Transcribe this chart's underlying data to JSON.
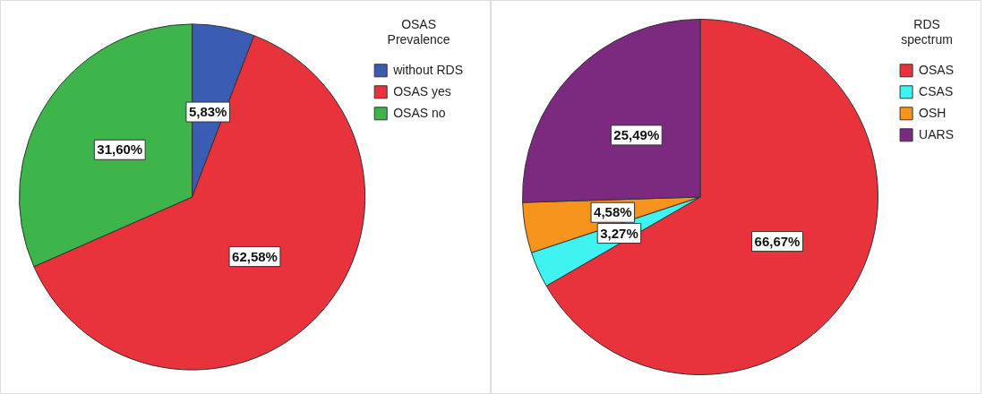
{
  "chart_data": [
    {
      "type": "pie",
      "legend_title": "OSAS Prevalence",
      "legend": "top right",
      "categories": [
        "without RDS",
        "OSAS yes",
        "OSAS no"
      ],
      "values": [
        5.83,
        62.58,
        31.6
      ],
      "colors": [
        "#3b5cb3",
        "#e8323c",
        "#3db54a"
      ],
      "value_labels": [
        "5,83%",
        "62,58%",
        "31,60%"
      ]
    },
    {
      "type": "pie",
      "legend_title": "RDS spectrum",
      "legend": "top right",
      "categories": [
        "OSAS",
        "CSAS",
        "OSH",
        "UARS"
      ],
      "values": [
        66.67,
        3.27,
        4.58,
        25.49
      ],
      "colors": [
        "#e8323c",
        "#3ff3f0",
        "#f7941d",
        "#7b2a80"
      ],
      "value_labels": [
        "66,67%",
        "3,27%",
        "4,58%",
        "25,49%"
      ]
    }
  ]
}
